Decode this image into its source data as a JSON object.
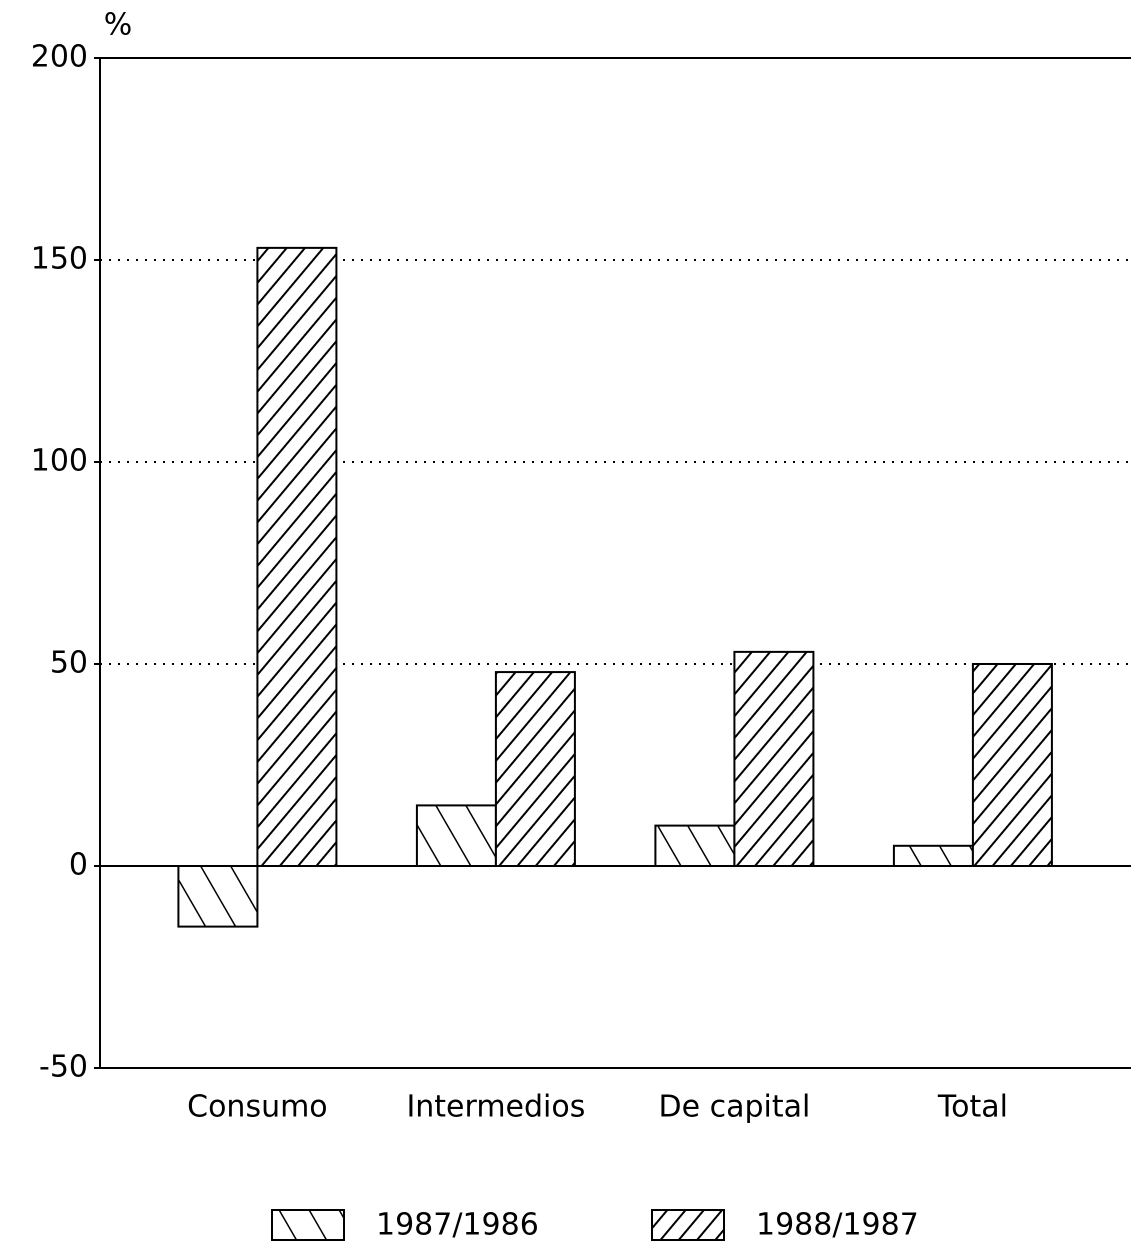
{
  "chart_data": {
    "type": "bar",
    "y_label": "%",
    "categories": [
      "Consumo",
      "Intermedios",
      "De capital",
      "Total"
    ],
    "series": [
      {
        "name": "1987/1986",
        "color": "#000000",
        "hatch": "backslash",
        "values": [
          -15,
          15,
          10,
          5
        ]
      },
      {
        "name": "1988/1987",
        "color": "#000000",
        "hatch": "slash",
        "values": [
          153,
          48,
          53,
          50
        ]
      }
    ],
    "ylim": [
      -50,
      200
    ],
    "yticks": [
      -50,
      0,
      50,
      100,
      150,
      200
    ],
    "grid": true,
    "legend": "bottom"
  }
}
